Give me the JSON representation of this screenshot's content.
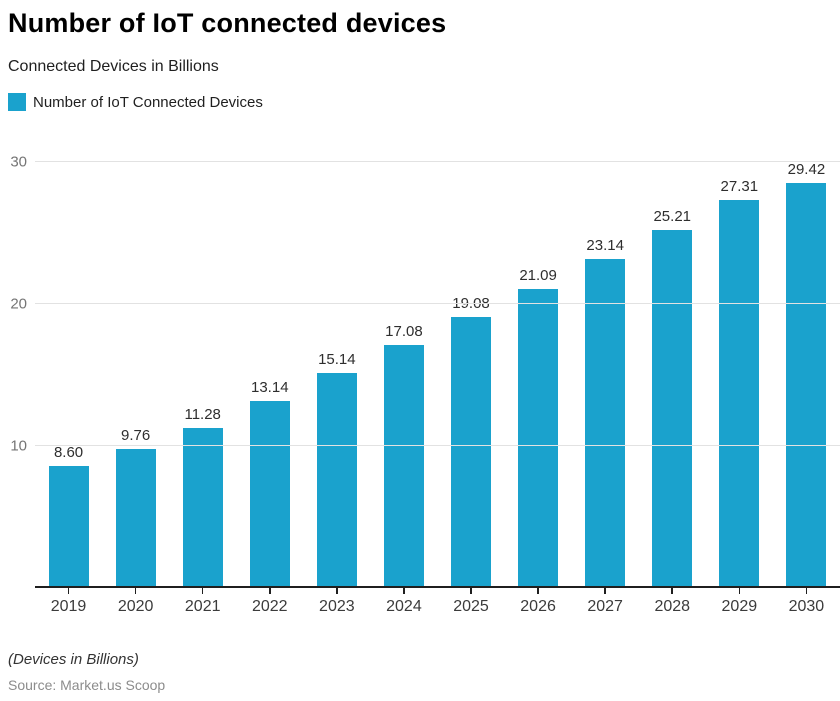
{
  "header": {
    "title": "Number of IoT connected devices",
    "subtitle": "Connected Devices in Billions"
  },
  "legend": {
    "label": "Number of IoT Connected Devices",
    "color": "#1aa2cd"
  },
  "chart_data": {
    "type": "bar",
    "title": "Number of IoT connected devices",
    "categories": [
      "2019",
      "2020",
      "2021",
      "2022",
      "2023",
      "2024",
      "2025",
      "2026",
      "2027",
      "2028",
      "2029",
      "2030"
    ],
    "values": [
      8.6,
      9.76,
      11.28,
      13.14,
      15.14,
      17.08,
      19.08,
      21.09,
      23.14,
      25.21,
      27.31,
      29.42
    ],
    "value_labels": [
      "8.60",
      "9.76",
      "11.28",
      "13.14",
      "15.14",
      "17.08",
      "19.08",
      "21.09",
      "23.14",
      "25.21",
      "27.31",
      "29.42"
    ],
    "series_name": "Number of IoT Connected Devices",
    "xlabel": "",
    "ylabel": "Connected Devices in Billions",
    "ylim": [
      0,
      30
    ],
    "yticks": [
      10,
      20,
      30
    ],
    "grid": true,
    "legend_position": "top-left",
    "bar_color": "#1aa2cd",
    "gridline_color": "#e2e2e2"
  },
  "footer": {
    "note": "(Devices in Billions)",
    "source": "Source: Market.us Scoop"
  }
}
